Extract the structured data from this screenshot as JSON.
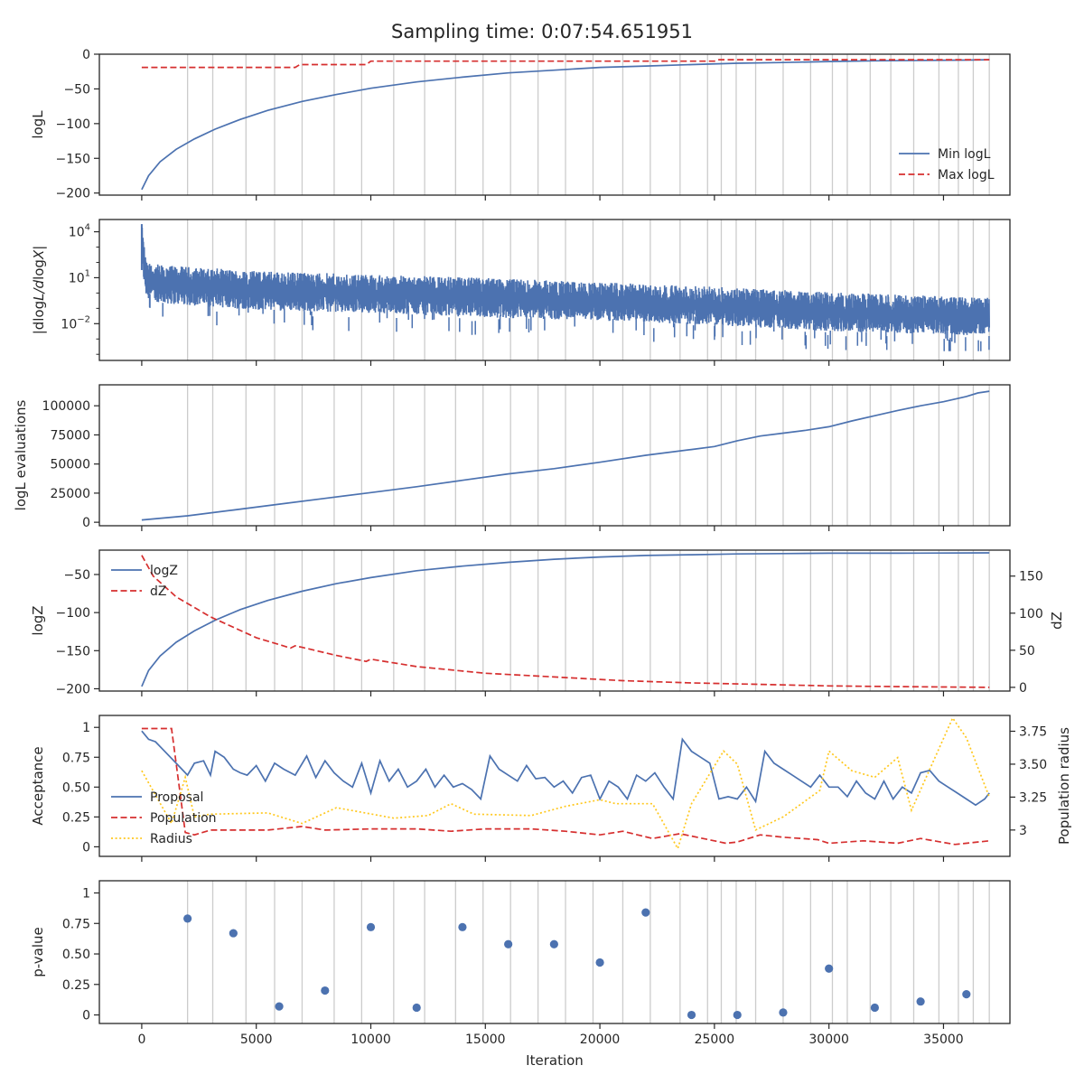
{
  "title": "Sampling time: 0:07:54.651951",
  "xlabel": "Iteration",
  "x_ticks": [
    0,
    5000,
    10000,
    15000,
    20000,
    25000,
    30000,
    35000
  ],
  "xlim": [
    -1850,
    37900
  ],
  "insertion_test_iterations": [
    2000,
    3100,
    4550,
    5800,
    7000,
    8400,
    9600,
    11000,
    12350,
    13700,
    14900,
    16100,
    17300,
    18500,
    19700,
    21000,
    22200,
    23500,
    24700,
    25300,
    25950,
    26800,
    28000,
    29200,
    30150,
    30800,
    31800,
    32700,
    33700,
    34800,
    35650,
    36300,
    37000
  ],
  "colors": {
    "blue": "#4c72b0",
    "red": "#d62f2f",
    "gold": "#ffc81f",
    "vline": "#cccccc",
    "axis": "#262626"
  },
  "chart_data": [
    {
      "type": "line",
      "ylabel": "logL",
      "ylim": [
        -203,
        0
      ],
      "y_ticks": [
        0,
        -50,
        -100,
        -150,
        -200
      ],
      "legend": {
        "placement": "lower-right",
        "entries": [
          "Min logL",
          "Max logL"
        ]
      },
      "series": [
        {
          "name": "Min logL",
          "style": "solid",
          "color": "blue",
          "x": [
            0,
            300,
            800,
            1500,
            2300,
            3200,
            4300,
            5500,
            7000,
            8500,
            10000,
            12000,
            14000,
            16000,
            18000,
            20000,
            22000,
            24000,
            26000,
            28000,
            30000,
            32000,
            34000,
            36000,
            37000
          ],
          "y": [
            -195,
            -175,
            -155,
            -137,
            -122,
            -108,
            -94,
            -81,
            -68,
            -58,
            -49,
            -40,
            -33,
            -27,
            -23,
            -19,
            -17,
            -15,
            -13,
            -12,
            -10.5,
            -9.5,
            -9,
            -8.5,
            -8
          ]
        },
        {
          "name": "Max logL",
          "style": "dashed",
          "color": "red",
          "x": [
            0,
            6700,
            6900,
            9800,
            10000,
            25000,
            25200,
            37000
          ],
          "y": [
            -19,
            -19,
            -15,
            -15,
            -10,
            -10,
            -8,
            -8
          ]
        }
      ]
    },
    {
      "type": "line",
      "ylabel": "|dlogL/dlogX|",
      "yscale": "log",
      "y_ticks": [
        "10^4",
        "10^1",
        "10^-2"
      ],
      "y_tick_exponents": [
        4,
        1,
        -2
      ],
      "ylim_exponent": [
        -4.4,
        4.8
      ],
      "series": [
        {
          "name": "",
          "style": "noisy-band",
          "color": "blue",
          "x": [
            0,
            200,
            1000,
            5000,
            10000,
            15000,
            20000,
            25000,
            30000,
            35000,
            37000
          ],
          "upper_exponent": [
            4.5,
            2.0,
            1.8,
            1.45,
            1.2,
            1.0,
            0.7,
            0.4,
            0.05,
            -0.2,
            -0.3
          ],
          "lower_exponent": [
            1.5,
            -0.4,
            -0.7,
            -1.1,
            -1.3,
            -1.6,
            -1.8,
            -2.1,
            -2.5,
            -2.7,
            -2.8
          ],
          "dips_exponent_min": -3.8
        }
      ]
    },
    {
      "type": "line",
      "ylabel": "logL evaluations",
      "ylim": [
        -3000,
        118000
      ],
      "y_ticks": [
        0,
        25000,
        50000,
        75000,
        100000
      ],
      "series": [
        {
          "name": "",
          "style": "solid",
          "color": "blue",
          "x": [
            0,
            2000,
            4000,
            6000,
            8000,
            10000,
            12000,
            14000,
            16000,
            18000,
            20000,
            22000,
            24000,
            25000,
            26000,
            27000,
            28000,
            29000,
            30000,
            31000,
            32000,
            33000,
            34000,
            35000,
            36000,
            36500,
            37000
          ],
          "y": [
            2000,
            5500,
            10500,
            15500,
            20500,
            25500,
            30500,
            36000,
            41500,
            46000,
            51500,
            57500,
            62500,
            65000,
            70000,
            74000,
            76500,
            79000,
            82000,
            87000,
            91500,
            96000,
            100000,
            103500,
            108000,
            111000,
            112500
          ]
        }
      ]
    },
    {
      "type": "line",
      "ylabel": "logZ",
      "ylabel_right": "dZ",
      "ylim": [
        -203,
        -18
      ],
      "y_ticks": [
        -50,
        -100,
        -150,
        -200
      ],
      "ylim_right": [
        -5,
        185
      ],
      "y_ticks_right": [
        0,
        50,
        100,
        150
      ],
      "legend": {
        "placement": "upper-left",
        "entries": [
          "logZ",
          "dZ"
        ]
      },
      "series": [
        {
          "name": "logZ",
          "style": "solid",
          "color": "blue",
          "axis": "left",
          "x": [
            0,
            300,
            800,
            1500,
            2300,
            3200,
            4300,
            5500,
            7000,
            8500,
            10000,
            12000,
            14000,
            16000,
            18000,
            20000,
            22000,
            24000,
            26000,
            28000,
            30000,
            33000,
            37000
          ],
          "y": [
            -197,
            -176,
            -157,
            -139,
            -124,
            -110,
            -96,
            -84,
            -72,
            -62,
            -54,
            -45,
            -39,
            -34,
            -30,
            -27,
            -25,
            -24,
            -23,
            -22.5,
            -22,
            -22,
            -21.5
          ]
        },
        {
          "name": "dZ",
          "style": "dashed",
          "color": "red",
          "axis": "right",
          "x": [
            0,
            500,
            1500,
            3000,
            5000,
            6500,
            6700,
            7000,
            8500,
            9800,
            10000,
            12000,
            15000,
            18000,
            21000,
            24000,
            27000,
            30000,
            33000,
            37000
          ],
          "y": [
            178,
            150,
            122,
            95,
            67,
            53,
            56,
            54,
            43,
            35,
            38,
            28,
            19,
            14,
            9,
            6,
            4,
            2,
            1,
            0
          ]
        }
      ]
    },
    {
      "type": "line",
      "ylabel": "Acceptance",
      "ylabel_right": "Population radius",
      "ylim": [
        -0.08,
        1.1
      ],
      "y_ticks": [
        0.0,
        0.25,
        0.5,
        0.75,
        1.0
      ],
      "ylim_right": [
        2.8,
        3.87
      ],
      "y_ticks_right": [
        3.0,
        3.25,
        3.5,
        3.75
      ],
      "legend": {
        "placement": "center-left",
        "entries": [
          "Proposal",
          "Population",
          "Radius"
        ]
      },
      "series": [
        {
          "name": "Proposal",
          "style": "solid",
          "color": "blue",
          "axis": "left",
          "x": [
            0,
            300,
            600,
            1000,
            1500,
            2000,
            2300,
            2700,
            3000,
            3200,
            3600,
            4000,
            4300,
            4600,
            5000,
            5400,
            5800,
            6200,
            6700,
            7200,
            7600,
            8000,
            8400,
            8800,
            9200,
            9600,
            10000,
            10400,
            10800,
            11200,
            11600,
            12000,
            12400,
            12800,
            13200,
            13600,
            14000,
            14400,
            14800,
            15200,
            15600,
            16000,
            16400,
            16800,
            17200,
            17600,
            18000,
            18400,
            18800,
            19200,
            19600,
            20000,
            20400,
            20800,
            21200,
            21600,
            22000,
            22400,
            22800,
            23200,
            23600,
            24000,
            24400,
            24800,
            25200,
            25600,
            26000,
            26400,
            26800,
            27200,
            27600,
            28000,
            28400,
            28800,
            29200,
            29600,
            30000,
            30400,
            30800,
            31200,
            31600,
            32000,
            32400,
            32800,
            33200,
            33600,
            34000,
            34400,
            34800,
            35200,
            35600,
            36000,
            36400,
            36800,
            37000
          ],
          "y": [
            0.97,
            0.9,
            0.88,
            0.8,
            0.7,
            0.6,
            0.7,
            0.72,
            0.6,
            0.8,
            0.75,
            0.65,
            0.62,
            0.6,
            0.68,
            0.55,
            0.7,
            0.65,
            0.6,
            0.76,
            0.58,
            0.72,
            0.62,
            0.55,
            0.5,
            0.7,
            0.45,
            0.72,
            0.55,
            0.65,
            0.5,
            0.55,
            0.65,
            0.5,
            0.6,
            0.5,
            0.53,
            0.48,
            0.4,
            0.76,
            0.65,
            0.6,
            0.55,
            0.68,
            0.57,
            0.58,
            0.5,
            0.55,
            0.45,
            0.58,
            0.6,
            0.4,
            0.55,
            0.5,
            0.4,
            0.6,
            0.55,
            0.62,
            0.5,
            0.4,
            0.9,
            0.8,
            0.75,
            0.7,
            0.4,
            0.42,
            0.4,
            0.5,
            0.38,
            0.8,
            0.7,
            0.65,
            0.6,
            0.55,
            0.5,
            0.6,
            0.5,
            0.5,
            0.42,
            0.55,
            0.45,
            0.4,
            0.55,
            0.4,
            0.5,
            0.45,
            0.62,
            0.64,
            0.55,
            0.5,
            0.45,
            0.4,
            0.35,
            0.4,
            0.45
          ]
        },
        {
          "name": "Population",
          "style": "dashed",
          "color": "red",
          "axis": "left",
          "x": [
            0,
            1300,
            1900,
            2300,
            3000,
            5500,
            7000,
            8000,
            10000,
            12000,
            13500,
            15000,
            17000,
            18500,
            20000,
            21000,
            22300,
            23500,
            25500,
            26000,
            27000,
            28000,
            29500,
            30000,
            31500,
            33000,
            34000,
            35500,
            37000
          ],
          "y": [
            0.99,
            0.99,
            0.12,
            0.1,
            0.14,
            0.14,
            0.17,
            0.14,
            0.15,
            0.15,
            0.13,
            0.15,
            0.15,
            0.13,
            0.1,
            0.13,
            0.07,
            0.11,
            0.03,
            0.04,
            0.1,
            0.08,
            0.06,
            0.03,
            0.05,
            0.03,
            0.07,
            0.02,
            0.05
          ]
        },
        {
          "name": "Radius",
          "style": "dotted",
          "color": "gold",
          "axis": "right",
          "x": [
            0,
            1300,
            1900,
            2300,
            3000,
            5500,
            7000,
            8500,
            11000,
            12500,
            13500,
            14500,
            17000,
            18500,
            20000,
            20700,
            22300,
            23400,
            24000,
            25400,
            26000,
            26800,
            28000,
            29600,
            30000,
            31000,
            32000,
            33000,
            33600,
            34500,
            35400,
            36000,
            37000
          ],
          "y": [
            3.45,
            3.05,
            3.4,
            3.1,
            3.12,
            3.13,
            3.05,
            3.17,
            3.09,
            3.11,
            3.2,
            3.12,
            3.11,
            3.18,
            3.23,
            3.2,
            3.2,
            2.86,
            3.2,
            3.6,
            3.5,
            3.0,
            3.1,
            3.3,
            3.6,
            3.45,
            3.4,
            3.55,
            3.15,
            3.5,
            3.85,
            3.7,
            3.25
          ]
        }
      ]
    },
    {
      "type": "scatter",
      "ylabel": "p-value",
      "ylim": [
        -0.07,
        1.1
      ],
      "y_ticks": [
        0.0,
        0.25,
        0.5,
        0.75,
        1.0
      ],
      "series": [
        {
          "name": "",
          "color": "blue",
          "x": [
            2000,
            4000,
            6000,
            8000,
            10000,
            12000,
            14000,
            16000,
            18000,
            20000,
            22000,
            24000,
            26000,
            28000,
            30000,
            32000,
            34000,
            36000
          ],
          "y": [
            0.79,
            0.67,
            0.07,
            0.2,
            0.72,
            0.06,
            0.72,
            0.58,
            0.58,
            0.43,
            0.84,
            0.0,
            0.0,
            0.02,
            0.38,
            0.06,
            0.11,
            0.17
          ]
        }
      ]
    }
  ]
}
